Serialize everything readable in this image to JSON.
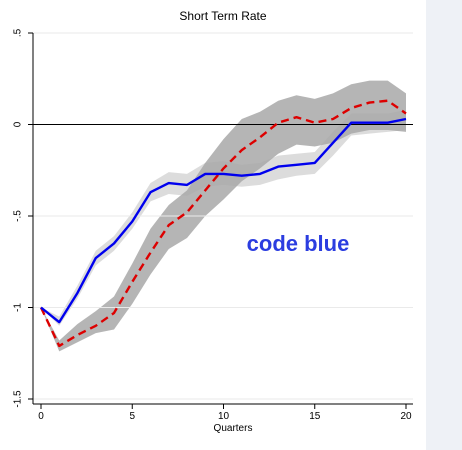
{
  "chart_data": {
    "type": "line",
    "title": "Short Term Rate",
    "xlabel": "Quarters",
    "ylabel": "",
    "xlim": [
      0,
      20
    ],
    "ylim": [
      -1.5,
      0.5
    ],
    "x_ticks": [
      0,
      5,
      10,
      15,
      20
    ],
    "y_ticks": [
      -1.5,
      -1,
      -0.5,
      0,
      0.5
    ],
    "x_tick_labels": [
      "0",
      "5",
      "10",
      "15",
      "20"
    ],
    "y_tick_labels": [
      "-1.5",
      "-1",
      "-.5",
      "0",
      ".5"
    ],
    "grid": "horizontal",
    "reference_line": 0,
    "annotation": {
      "text": "code blue",
      "color": "#2b3de0"
    },
    "x": [
      0,
      1,
      2,
      3,
      4,
      5,
      6,
      7,
      8,
      9,
      10,
      11,
      12,
      13,
      14,
      15,
      16,
      17,
      18,
      19,
      20
    ],
    "series": [
      {
        "color": "#0000ee",
        "style": "solid",
        "values": [
          -1.0,
          -1.08,
          -0.92,
          -0.73,
          -0.65,
          -0.53,
          -0.37,
          -0.32,
          -0.33,
          -0.27,
          -0.27,
          -0.28,
          -0.27,
          -0.23,
          -0.22,
          -0.21,
          -0.1,
          0.01,
          0.01,
          0.01,
          0.03
        ],
        "band_lower": [
          -1.0,
          -1.1,
          -0.95,
          -0.77,
          -0.69,
          -0.57,
          -0.42,
          -0.38,
          -0.39,
          -0.34,
          -0.33,
          -0.34,
          -0.33,
          -0.3,
          -0.28,
          -0.27,
          -0.17,
          -0.06,
          -0.05,
          -0.04,
          -0.03
        ],
        "band_upper": [
          -1.0,
          -1.05,
          -0.88,
          -0.69,
          -0.61,
          -0.48,
          -0.32,
          -0.26,
          -0.27,
          -0.21,
          -0.2,
          -0.22,
          -0.21,
          -0.17,
          -0.16,
          -0.15,
          -0.04,
          0.06,
          0.06,
          0.06,
          0.08
        ],
        "band_color": "#d6d6d6"
      },
      {
        "color": "#dd0000",
        "style": "dashed",
        "values": [
          -1.0,
          -1.21,
          -1.15,
          -1.1,
          -1.03,
          -0.86,
          -0.7,
          -0.55,
          -0.48,
          -0.36,
          -0.24,
          -0.14,
          -0.07,
          0.01,
          0.04,
          0.01,
          0.03,
          0.09,
          0.12,
          0.13,
          0.06
        ],
        "band_lower": [
          -1.0,
          -1.24,
          -1.19,
          -1.14,
          -1.12,
          -0.98,
          -0.82,
          -0.68,
          -0.62,
          -0.5,
          -0.41,
          -0.31,
          -0.24,
          -0.16,
          -0.11,
          -0.12,
          -0.1,
          -0.05,
          -0.03,
          -0.03,
          -0.04
        ],
        "band_upper": [
          -1.0,
          -1.18,
          -1.09,
          -1.02,
          -0.94,
          -0.76,
          -0.57,
          -0.44,
          -0.36,
          -0.21,
          -0.08,
          0.03,
          0.07,
          0.13,
          0.16,
          0.14,
          0.17,
          0.22,
          0.24,
          0.24,
          0.17
        ],
        "band_color": "#a8a8a8"
      }
    ]
  }
}
